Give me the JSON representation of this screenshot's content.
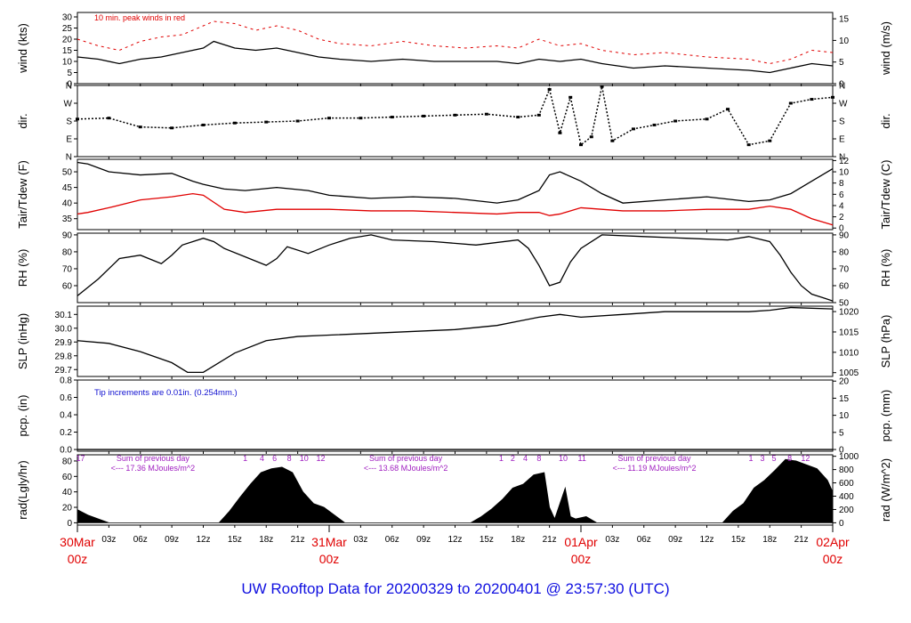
{
  "title": "UW Rooftop Data for 20200329  to  20200401 @ 23:57:30  (UTC)",
  "colors": {
    "primary": "#000000",
    "secondary": "#e00000",
    "title": "#1010e0",
    "annotation": "#1010d0",
    "radiation_note": "#a020c0",
    "date_label": "#e00000"
  },
  "x_axis": {
    "unit": "hours since 30Mar 00z",
    "range": [
      0,
      72
    ],
    "hour_ticks": [
      {
        "h": 3,
        "label": "03z"
      },
      {
        "h": 6,
        "label": "06z"
      },
      {
        "h": 9,
        "label": "09z"
      },
      {
        "h": 12,
        "label": "12z"
      },
      {
        "h": 15,
        "label": "15z"
      },
      {
        "h": 18,
        "label": "18z"
      },
      {
        "h": 21,
        "label": "21z"
      },
      {
        "h": 27,
        "label": "03z"
      },
      {
        "h": 30,
        "label": "06z"
      },
      {
        "h": 33,
        "label": "09z"
      },
      {
        "h": 36,
        "label": "12z"
      },
      {
        "h": 39,
        "label": "15z"
      },
      {
        "h": 42,
        "label": "18z"
      },
      {
        "h": 45,
        "label": "21z"
      },
      {
        "h": 51,
        "label": "03z"
      },
      {
        "h": 54,
        "label": "06z"
      },
      {
        "h": 57,
        "label": "09z"
      },
      {
        "h": 60,
        "label": "12z"
      },
      {
        "h": 63,
        "label": "15z"
      },
      {
        "h": 66,
        "label": "18z"
      },
      {
        "h": 69,
        "label": "21z"
      }
    ],
    "day_ticks": [
      {
        "h": 0,
        "top": "30Mar",
        "bottom": "00z"
      },
      {
        "h": 24,
        "top": "31Mar",
        "bottom": "00z"
      },
      {
        "h": 48,
        "top": "01Apr",
        "bottom": "00z"
      },
      {
        "h": 72,
        "top": "02Apr",
        "bottom": "00z"
      }
    ]
  },
  "chart_data": [
    {
      "type": "line",
      "id": "wind",
      "ylabel": "wind (kts)",
      "ylabel_right": "wind (m/s)",
      "ylim": [
        0,
        32
      ],
      "yticks": [
        0,
        5,
        10,
        15,
        20,
        25,
        30
      ],
      "right_ticks": [
        0,
        5,
        10,
        15
      ],
      "right_factor": 1.944,
      "annotation": "10 min. peak winds in red",
      "x": [
        0,
        2,
        4,
        6,
        8,
        10,
        12,
        13,
        15,
        17,
        19,
        21,
        23,
        25,
        28,
        31,
        34,
        37,
        40,
        42,
        44,
        46,
        48,
        50,
        53,
        56,
        60,
        64,
        66,
        68,
        70,
        72
      ],
      "series": [
        {
          "name": "wind",
          "values": [
            12,
            11,
            9,
            11,
            12,
            14,
            16,
            19,
            16,
            15,
            16,
            14,
            12,
            11,
            10,
            11,
            10,
            10,
            10,
            9,
            11,
            10,
            11,
            9,
            7,
            8,
            7,
            6,
            5,
            7,
            9,
            8
          ]
        },
        {
          "name": "peak",
          "values": [
            20,
            17,
            15,
            19,
            21,
            22,
            26,
            28,
            27,
            24,
            26,
            24,
            20,
            18,
            17,
            19,
            17,
            16,
            17,
            16,
            20,
            17,
            18,
            15,
            13,
            14,
            12,
            11,
            9,
            11,
            15,
            14
          ]
        }
      ]
    },
    {
      "type": "scatter",
      "id": "dir",
      "ylabel": "dir.",
      "ylim": [
        0,
        360
      ],
      "yticks": [
        0,
        90,
        180,
        270,
        360
      ],
      "ytick_labels": [
        "N",
        "E",
        "S",
        "W",
        "N"
      ],
      "x": [
        0,
        3,
        6,
        9,
        12,
        15,
        18,
        21,
        24,
        27,
        30,
        33,
        36,
        39,
        42,
        44,
        45,
        46,
        47,
        48,
        49,
        50,
        51,
        53,
        55,
        57,
        60,
        62,
        64,
        66,
        68,
        70,
        72
      ],
      "series": [
        {
          "name": "dir",
          "values": [
            190,
            195,
            150,
            145,
            160,
            170,
            175,
            180,
            195,
            195,
            200,
            205,
            210,
            215,
            200,
            210,
            340,
            120,
            300,
            60,
            100,
            355,
            80,
            140,
            160,
            180,
            190,
            240,
            60,
            80,
            270,
            290,
            300
          ]
        }
      ]
    },
    {
      "type": "line",
      "id": "temp",
      "ylabel": "Tair/Tdew (F)",
      "ylabel_right": "Tair/Tdew (C)",
      "ylim": [
        31.5,
        54
      ],
      "yticks": [
        35,
        40,
        45,
        50
      ],
      "right_ticks": [
        0,
        2,
        4,
        6,
        8,
        10,
        12
      ],
      "x": [
        0,
        1,
        3,
        6,
        9,
        11,
        12,
        14,
        16,
        19,
        22,
        24,
        28,
        32,
        36,
        40,
        42,
        44,
        45,
        46,
        48,
        50,
        52,
        56,
        60,
        64,
        66,
        68,
        70,
        72
      ],
      "series": [
        {
          "name": "Tair",
          "values": [
            53,
            52.5,
            50,
            49,
            49.5,
            47,
            46,
            44.5,
            44,
            45,
            44,
            42.5,
            41.5,
            42,
            41.5,
            40,
            41,
            44,
            49,
            50,
            47,
            43,
            40,
            41,
            42,
            40.5,
            41,
            43,
            47,
            51
          ]
        },
        {
          "name": "Tdew",
          "values": [
            36.5,
            37,
            38.5,
            41,
            42,
            43,
            42.5,
            38,
            37,
            38,
            38,
            38,
            37.5,
            37.5,
            37,
            36.5,
            37,
            37,
            36,
            36.5,
            38.5,
            38,
            37.5,
            37.5,
            38,
            38,
            39,
            38,
            35,
            33
          ]
        }
      ]
    },
    {
      "type": "line",
      "id": "rh",
      "ylabel": "RH (%)",
      "ylabel_right": "RH (%)",
      "ylim": [
        50,
        91
      ],
      "yticks": [
        60,
        70,
        80,
        90
      ],
      "right_ticks": [
        50,
        60,
        70,
        80,
        90
      ],
      "x": [
        0,
        2,
        4,
        6,
        8,
        9,
        10,
        12,
        13,
        14,
        16,
        18,
        19,
        20,
        22,
        24,
        26,
        28,
        30,
        34,
        38,
        42,
        43,
        44,
        45,
        46,
        47,
        48,
        50,
        54,
        58,
        62,
        64,
        66,
        67,
        68,
        69,
        70,
        71,
        72
      ],
      "series": [
        {
          "name": "RH",
          "values": [
            54,
            64,
            76,
            78,
            73,
            78,
            84,
            88,
            86,
            82,
            77,
            72,
            76,
            83,
            79,
            84,
            88,
            90,
            87,
            86,
            84,
            87,
            82,
            72,
            60,
            62,
            74,
            82,
            90,
            89,
            88,
            87,
            89,
            86,
            78,
            68,
            60,
            55,
            53,
            51
          ]
        }
      ]
    },
    {
      "type": "line",
      "id": "slp",
      "ylabel": "SLP (inHg)",
      "ylabel_right": "SLP (hPa)",
      "ylim": [
        29.65,
        30.16
      ],
      "yticks": [
        29.7,
        29.8,
        29.9,
        30.0,
        30.1
      ],
      "ytick_labels": [
        "29.7",
        "29.8",
        "29.9",
        "30.0",
        "30.1"
      ],
      "right_ticks": [
        1005,
        1010,
        1015,
        1020
      ],
      "x": [
        0,
        3,
        6,
        9,
        10.5,
        12,
        15,
        18,
        21,
        24,
        30,
        36,
        40,
        42,
        44,
        46,
        48,
        52,
        56,
        60,
        64,
        66,
        68,
        72
      ],
      "series": [
        {
          "name": "SLP",
          "values": [
            29.91,
            29.89,
            29.83,
            29.75,
            29.68,
            29.68,
            29.82,
            29.91,
            29.94,
            29.95,
            29.97,
            29.99,
            30.02,
            30.05,
            30.08,
            30.1,
            30.08,
            30.1,
            30.12,
            30.12,
            30.12,
            30.13,
            30.15,
            30.14
          ]
        }
      ]
    },
    {
      "type": "line",
      "id": "pcp",
      "ylabel": "pcp. (in)",
      "ylabel_right": "pcp. (mm)",
      "ylim": [
        -0.02,
        0.8
      ],
      "yticks": [
        0.0,
        0.2,
        0.4,
        0.6,
        0.8
      ],
      "ytick_labels": [
        "0.0",
        "0.2",
        "0.4",
        "0.6",
        "0.8"
      ],
      "right_ticks": [
        0,
        5,
        10,
        15,
        20
      ],
      "annotation": "Tip increments are 0.01in. (0.254mm.)",
      "x": [
        0,
        72
      ],
      "series": [
        {
          "name": "pcp",
          "values": [
            0,
            0
          ]
        }
      ]
    },
    {
      "type": "area",
      "id": "rad",
      "ylabel": "rad(Lgly/hr)",
      "ylabel_right": "rad (W/m^2)",
      "ylim": [
        -3,
        88
      ],
      "yticks": [
        0,
        20,
        40,
        60,
        80
      ],
      "right_ticks": [
        0,
        200,
        400,
        600,
        800,
        1000
      ],
      "right_factor": 0.0861,
      "x": [
        0,
        1,
        3,
        13.5,
        14.5,
        15.5,
        16.5,
        17.5,
        18.5,
        19.5,
        20.5,
        21.5,
        22.5,
        23.5,
        24.5,
        25.5,
        37.5,
        38.5,
        39.5,
        40.5,
        41.5,
        42.5,
        43.5,
        44.5,
        45,
        45.5,
        46.5,
        47,
        47.5,
        48.5,
        49.5,
        61.5,
        62.5,
        63.5,
        64.5,
        65.5,
        66.5,
        67.5,
        68.5,
        69.5,
        70.5,
        71.5,
        72
      ],
      "series": [
        {
          "name": "rad",
          "values": [
            17,
            10,
            0,
            0,
            15,
            33,
            50,
            65,
            70,
            72,
            65,
            40,
            25,
            20,
            10,
            0,
            0,
            8,
            18,
            30,
            45,
            50,
            62,
            65,
            20,
            5,
            45,
            8,
            5,
            8,
            0,
            0,
            15,
            25,
            45,
            55,
            68,
            82,
            80,
            75,
            70,
            55,
            40
          ]
        }
      ],
      "hour_labels": [
        {
          "h": 0.3,
          "label": "17"
        },
        {
          "h": 16.0,
          "label": "1"
        },
        {
          "h": 17.6,
          "label": "4"
        },
        {
          "h": 18.8,
          "label": "6"
        },
        {
          "h": 20.2,
          "label": "8"
        },
        {
          "h": 21.6,
          "label": "10"
        },
        {
          "h": 23.2,
          "label": "12"
        },
        {
          "h": 40.4,
          "label": "1"
        },
        {
          "h": 41.5,
          "label": "2"
        },
        {
          "h": 42.7,
          "label": "4"
        },
        {
          "h": 44.0,
          "label": "8"
        },
        {
          "h": 46.3,
          "label": "10"
        },
        {
          "h": 48.1,
          "label": "11"
        },
        {
          "h": 64.2,
          "label": "1"
        },
        {
          "h": 65.3,
          "label": "3"
        },
        {
          "h": 66.4,
          "label": "5"
        },
        {
          "h": 67.9,
          "label": "8"
        },
        {
          "h": 69.4,
          "label": "12"
        }
      ],
      "daily_notes": [
        {
          "h": 7.2,
          "line1": "Sum of previous day",
          "line2": "<--- 17.36 MJoules/m^2"
        },
        {
          "h": 31.3,
          "line1": "Sum of previous day",
          "line2": "<--- 13.68 MJoules/m^2"
        },
        {
          "h": 55.0,
          "line1": "Sum of previous day",
          "line2": "<--- 11.19 MJoules/m^2"
        }
      ]
    }
  ]
}
